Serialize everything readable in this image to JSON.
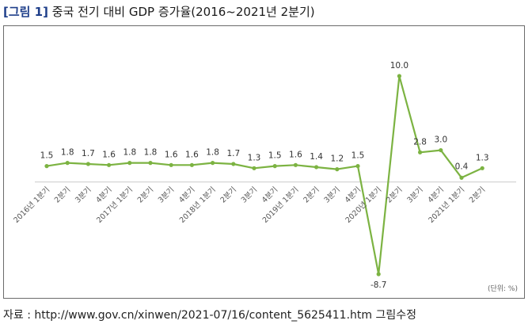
{
  "header": {
    "figure_label": "[그림 1]",
    "title": "중국 전기 대비 GDP 증가율(2016~2021년 2분기)"
  },
  "footer": {
    "source": "자료 : http://www.gov.cn/xinwen/2021-07/16/content_5625411.htm 그림수정"
  },
  "chart_data": {
    "type": "line",
    "unit_note": "(단위: %)",
    "categories": [
      "2016년 1분기",
      "2분기",
      "3분기",
      "4분기",
      "2017년 1분기",
      "2분기",
      "3분기",
      "4분기",
      "2018년 1분기",
      "2분기",
      "3분기",
      "4분기",
      "2019년 1분기",
      "2분기",
      "3분기",
      "4분기",
      "2020년 1분기",
      "2분기",
      "3분기",
      "4분기",
      "2021년 1분기",
      "2분기"
    ],
    "series": [
      {
        "values": [
          1.5,
          1.8,
          1.7,
          1.6,
          1.8,
          1.8,
          1.6,
          1.6,
          1.8,
          1.7,
          1.3,
          1.5,
          1.6,
          1.4,
          1.2,
          1.5,
          -8.7,
          10.0,
          2.8,
          3.0,
          0.4,
          1.3
        ]
      }
    ],
    "value_labels": [
      "1.5",
      "1.8",
      "1.7",
      "1.6",
      "1.8",
      "1.8",
      "1.6",
      "1.6",
      "1.8",
      "1.7",
      "1.3",
      "1.5",
      "1.6",
      "1.4",
      "1.2",
      "1.5",
      "-8.7",
      "10.0",
      "2.8",
      "3.0",
      "0.4",
      "1.3"
    ],
    "ylim": [
      -8.7,
      10.0
    ],
    "line_color": "#7cb342",
    "axis_color": "#cfcfcf",
    "grid": false,
    "legend": "none"
  }
}
